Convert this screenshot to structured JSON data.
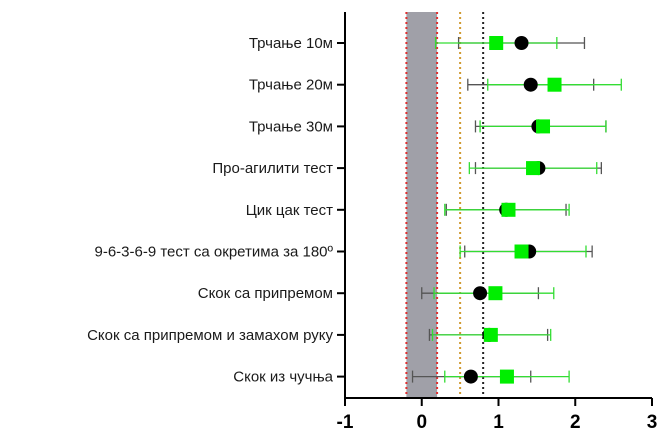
{
  "chart_data": {
    "type": "scatter",
    "orientation": "horizontal",
    "categories": [
      "Трчање 10м",
      "Трчање 20м",
      "Трчање 30м",
      "Про-агилити тест",
      "Цик цак тест",
      "9-6-3-6-9 тест са окретима за 180º",
      "Скок са припремом",
      "Скок са припремом и замахом руку",
      "Скок из чучња"
    ],
    "xlim": [
      -1,
      3
    ],
    "xticks": [
      "-1",
      "0",
      "1",
      "2",
      "3"
    ],
    "series": [
      {
        "marker": "circle",
        "color": "#000000",
        "values": [
          1.3,
          1.42,
          1.52,
          1.52,
          1.1,
          1.4,
          0.76,
          0.88,
          0.64
        ],
        "ci_low": [
          0.48,
          0.6,
          0.7,
          0.7,
          0.32,
          0.56,
          0.0,
          0.1,
          -0.12
        ],
        "ci_high": [
          2.12,
          2.24,
          2.4,
          2.34,
          1.88,
          2.22,
          1.52,
          1.64,
          1.42
        ]
      },
      {
        "marker": "square",
        "color": "#00ee00",
        "values": [
          0.97,
          1.73,
          1.58,
          1.45,
          1.13,
          1.3,
          0.96,
          0.9,
          1.11
        ],
        "ci_low": [
          0.18,
          0.86,
          0.76,
          0.62,
          0.3,
          0.5,
          0.16,
          0.14,
          0.3
        ],
        "ci_high": [
          1.76,
          2.6,
          2.4,
          2.28,
          1.92,
          2.14,
          1.72,
          1.68,
          1.92
        ]
      }
    ],
    "shaded_band": {
      "from": -0.2,
      "to": 0.2,
      "color": "#a0a0a8"
    },
    "reference_lines": [
      {
        "x": -0.2,
        "color": "#e03030",
        "style": "dotted"
      },
      {
        "x": 0.2,
        "color": "#e03030",
        "style": "dotted"
      },
      {
        "x": 0.5,
        "color": "#d09a30",
        "style": "dotted"
      },
      {
        "x": 0.8,
        "color": "#222222",
        "style": "dotted"
      }
    ],
    "grid": false,
    "legend": "none"
  }
}
